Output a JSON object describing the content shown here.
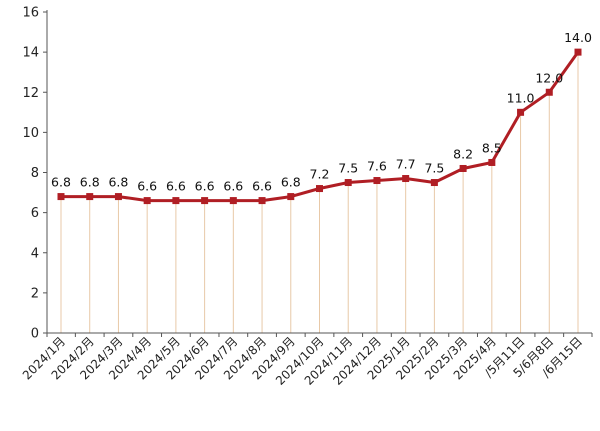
{
  "chart_data": {
    "type": "line",
    "categories": [
      "2024/1月",
      "2024/2月",
      "2024/3月",
      "2024/4月",
      "2024/5月",
      "2024/6月",
      "2024/7月",
      "2024/8月",
      "2024/9月",
      "2024/10月",
      "2024/11月",
      "2024/12月",
      "2025/1月",
      "2025/2月",
      "2025/3月",
      "2025/4月",
      "/5月11日",
      "5/6月8日",
      "/6月15日"
    ],
    "series": [
      {
        "values": [
          6.8,
          6.8,
          6.8,
          6.6,
          6.6,
          6.6,
          6.6,
          6.6,
          6.8,
          7.2,
          7.5,
          7.6,
          7.7,
          7.5,
          8.2,
          8.5,
          11.0,
          12.0,
          14.0
        ]
      }
    ],
    "data_labels": [
      "6.8",
      "6.8",
      "6.8",
      "6.6",
      "6.6",
      "6.6",
      "6.6",
      "6.6",
      "6.8",
      "7.2",
      "7.5",
      "7.6",
      "7.7",
      "7.5",
      "8.2",
      "8.5",
      "11.0",
      "12.0",
      "14.0"
    ],
    "y_ticks": [
      "0",
      "2",
      "4",
      "6",
      "8",
      "10",
      "12",
      "14",
      "16"
    ],
    "ylim": [
      0,
      16
    ],
    "grid": false,
    "line_color": "#b01e24",
    "drop_line_color": "#e8c9a8",
    "axis_color": "#555555",
    "title": "",
    "xlabel": "",
    "ylabel": ""
  }
}
